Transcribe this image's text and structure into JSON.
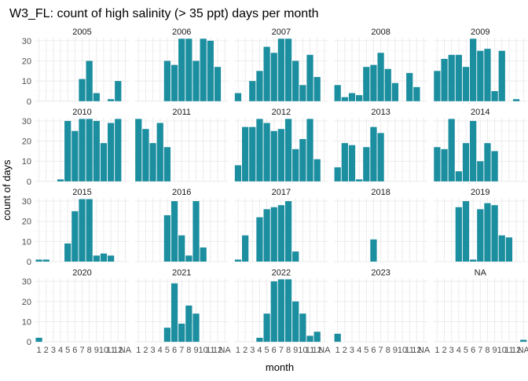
{
  "chart_data": {
    "type": "bar",
    "title": "W3_FL: count of high salinity (> 35 ppt) days per month",
    "xlabel": "month",
    "ylabel": "count of days",
    "categories": [
      "1",
      "2",
      "3",
      "4",
      "5",
      "6",
      "7",
      "8",
      "9",
      "10",
      "11",
      "12",
      "NA"
    ],
    "ylim": [
      0,
      31
    ],
    "yticks": [
      0,
      10,
      20,
      30
    ],
    "x_tick_labels": [
      "1",
      "2",
      "3",
      "4",
      "5",
      "6",
      "7",
      "8",
      "9",
      "10",
      "11",
      "12",
      "NA"
    ],
    "bar_color": "#1b8e9f",
    "grid": true,
    "facets": [
      {
        "label": "2005",
        "values": [
          0,
          0,
          0,
          0,
          0,
          0,
          11,
          20,
          4,
          0,
          1,
          10,
          0
        ]
      },
      {
        "label": "2006",
        "values": [
          0,
          0,
          0,
          0,
          20,
          18,
          31,
          31,
          20,
          31,
          30,
          17,
          0
        ]
      },
      {
        "label": "2007",
        "values": [
          4,
          0,
          10,
          15,
          27,
          24,
          31,
          31,
          20,
          8,
          23,
          12,
          0
        ]
      },
      {
        "label": "2008",
        "values": [
          8,
          2,
          4,
          3,
          17,
          18,
          24,
          16,
          9,
          0,
          14,
          7,
          0
        ]
      },
      {
        "label": "2009",
        "values": [
          15,
          21,
          23,
          23,
          17,
          31,
          25,
          26,
          5,
          25,
          0,
          1,
          0
        ]
      },
      {
        "label": "2010",
        "values": [
          0,
          0,
          0,
          1,
          30,
          25,
          31,
          31,
          30,
          19,
          29,
          31,
          0
        ]
      },
      {
        "label": "2011",
        "values": [
          31,
          26,
          19,
          29,
          17,
          0,
          0,
          0,
          0,
          0,
          0,
          0,
          0
        ]
      },
      {
        "label": "2012",
        "values": [
          8,
          27,
          27,
          31,
          29,
          25,
          26,
          31,
          16,
          21,
          31,
          11,
          0
        ]
      },
      {
        "label": "2013",
        "values": [
          7,
          19,
          18,
          1,
          17,
          27,
          24,
          0,
          0,
          0,
          0,
          0,
          0
        ]
      },
      {
        "label": "2014",
        "values": [
          17,
          16,
          31,
          5,
          19,
          30,
          10,
          19,
          15,
          0,
          0,
          0,
          0
        ]
      },
      {
        "label": "2015",
        "values": [
          1,
          1,
          0,
          0,
          9,
          25,
          31,
          31,
          3,
          4,
          3,
          0,
          0
        ]
      },
      {
        "label": "2016",
        "values": [
          0,
          0,
          0,
          0,
          23,
          30,
          13,
          3,
          30,
          7,
          0,
          0,
          0
        ]
      },
      {
        "label": "2017",
        "values": [
          1,
          13,
          0,
          22,
          26,
          27,
          28,
          30,
          5,
          0,
          0,
          0,
          0
        ]
      },
      {
        "label": "2018",
        "values": [
          0,
          0,
          0,
          0,
          0,
          11,
          0,
          0,
          0,
          0,
          0,
          0,
          0
        ]
      },
      {
        "label": "2019",
        "values": [
          0,
          0,
          0,
          27,
          30,
          1,
          26,
          29,
          28,
          13,
          12,
          0,
          0
        ]
      },
      {
        "label": "2020",
        "values": [
          2,
          0,
          0,
          0,
          0,
          0,
          0,
          0,
          0,
          0,
          0,
          0,
          0
        ]
      },
      {
        "label": "2021",
        "values": [
          0,
          0,
          0,
          0,
          7,
          29,
          9,
          18,
          14,
          0,
          0,
          0,
          0
        ]
      },
      {
        "label": "2022",
        "values": [
          0,
          0,
          0,
          2,
          14,
          30,
          31,
          31,
          20,
          14,
          3,
          5,
          0
        ]
      },
      {
        "label": "2023",
        "values": [
          4,
          0,
          0,
          0,
          0,
          0,
          0,
          0,
          0,
          0,
          0,
          0,
          0
        ]
      },
      {
        "label": "NA",
        "values": [
          0,
          0,
          0,
          0,
          0,
          0,
          0,
          0,
          0,
          0,
          0,
          0,
          1
        ]
      }
    ]
  }
}
